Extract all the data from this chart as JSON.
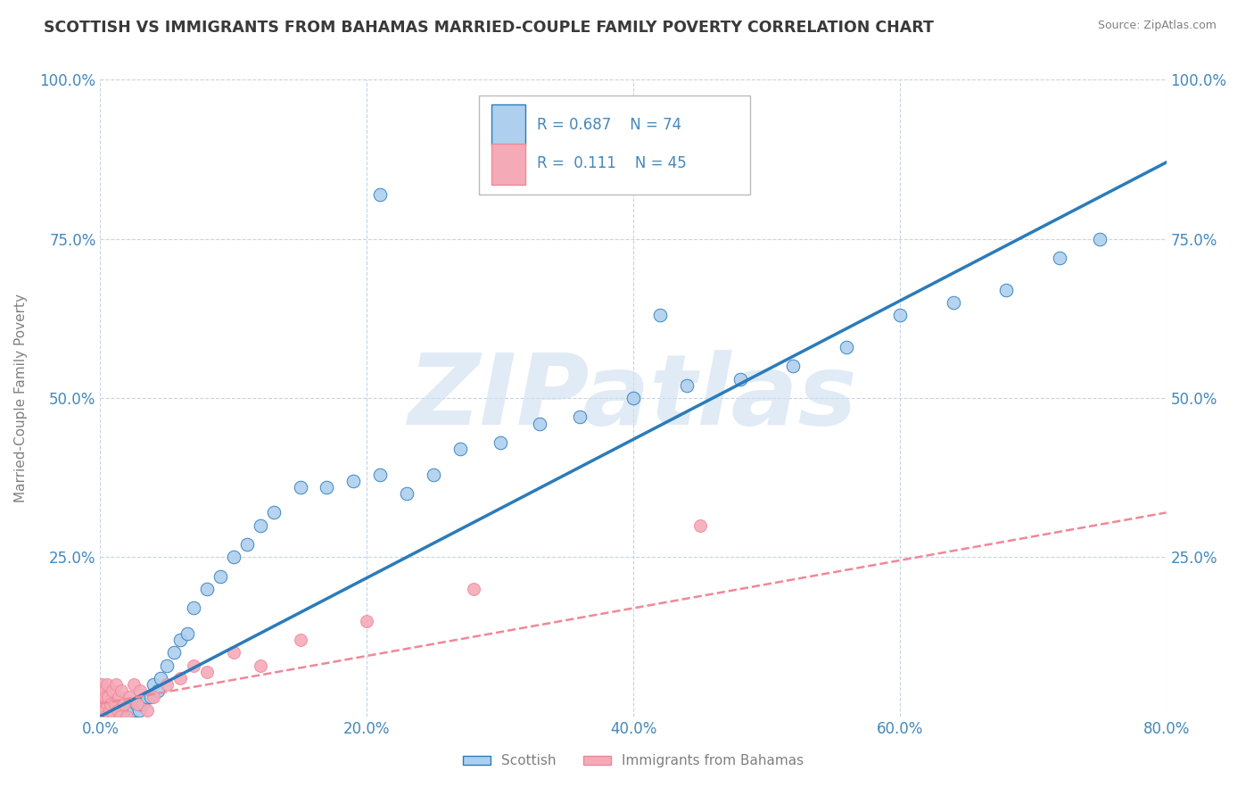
{
  "title": "SCOTTISH VS IMMIGRANTS FROM BAHAMAS MARRIED-COUPLE FAMILY POVERTY CORRELATION CHART",
  "source": "Source: ZipAtlas.com",
  "ylabel": "Married-Couple Family Poverty",
  "xlim": [
    0.0,
    0.8
  ],
  "ylim": [
    0.0,
    1.0
  ],
  "xticks": [
    0.0,
    0.2,
    0.4,
    0.6,
    0.8
  ],
  "xticklabels": [
    "0.0%",
    "20.0%",
    "40.0%",
    "60.0%",
    "80.0%"
  ],
  "yticks": [
    0.0,
    0.25,
    0.5,
    0.75,
    1.0
  ],
  "yticklabels": [
    "",
    "25.0%",
    "50.0%",
    "75.0%",
    "100.0%"
  ],
  "legend_r_scottish": "0.687",
  "legend_n_scottish": "74",
  "legend_r_bahamas": "0.111",
  "legend_n_bahamas": "45",
  "scottish_color": "#aecfee",
  "bahamas_color": "#f5aab8",
  "trend_scottish_color": "#2b7bba",
  "trend_bahamas_color": "#f08898",
  "watermark": "ZIPatlas",
  "watermark_color": "#ccdff0",
  "background_color": "#ffffff",
  "grid_color": "#c0d0e0",
  "title_color": "#3a3a3a",
  "axis_label_color": "#808080",
  "tick_label_color": "#4488bb",
  "scottish_x": [
    0.001,
    0.001,
    0.002,
    0.002,
    0.003,
    0.003,
    0.004,
    0.004,
    0.005,
    0.005,
    0.006,
    0.006,
    0.007,
    0.007,
    0.008,
    0.009,
    0.01,
    0.01,
    0.011,
    0.012,
    0.013,
    0.014,
    0.015,
    0.016,
    0.017,
    0.018,
    0.019,
    0.02,
    0.021,
    0.022,
    0.023,
    0.025,
    0.027,
    0.029,
    0.03,
    0.032,
    0.035,
    0.038,
    0.04,
    0.043,
    0.045,
    0.05,
    0.055,
    0.06,
    0.065,
    0.07,
    0.08,
    0.09,
    0.1,
    0.11,
    0.12,
    0.13,
    0.15,
    0.17,
    0.19,
    0.21,
    0.23,
    0.25,
    0.27,
    0.3,
    0.33,
    0.36,
    0.4,
    0.44,
    0.48,
    0.52,
    0.56,
    0.6,
    0.64,
    0.68,
    0.72,
    0.75,
    0.21,
    0.42
  ],
  "scottish_y": [
    0.0,
    0.01,
    0.0,
    0.01,
    0.0,
    0.0,
    0.0,
    0.0,
    0.0,
    0.01,
    0.0,
    0.0,
    0.0,
    0.01,
    0.0,
    0.0,
    0.0,
    0.01,
    0.0,
    0.0,
    0.0,
    0.01,
    0.0,
    0.0,
    0.0,
    0.01,
    0.0,
    0.0,
    0.01,
    0.0,
    0.0,
    0.01,
    0.02,
    0.01,
    0.02,
    0.02,
    0.03,
    0.03,
    0.05,
    0.04,
    0.06,
    0.08,
    0.1,
    0.12,
    0.13,
    0.17,
    0.2,
    0.22,
    0.25,
    0.27,
    0.3,
    0.32,
    0.36,
    0.36,
    0.37,
    0.38,
    0.35,
    0.38,
    0.42,
    0.43,
    0.46,
    0.47,
    0.5,
    0.52,
    0.53,
    0.55,
    0.58,
    0.63,
    0.65,
    0.67,
    0.72,
    0.75,
    0.82,
    0.63
  ],
  "bahamas_x": [
    0.0,
    0.0,
    0.0,
    0.0,
    0.001,
    0.001,
    0.001,
    0.002,
    0.002,
    0.003,
    0.003,
    0.004,
    0.004,
    0.005,
    0.005,
    0.006,
    0.006,
    0.007,
    0.008,
    0.009,
    0.01,
    0.011,
    0.012,
    0.013,
    0.014,
    0.015,
    0.016,
    0.018,
    0.02,
    0.022,
    0.025,
    0.028,
    0.03,
    0.035,
    0.04,
    0.05,
    0.06,
    0.07,
    0.08,
    0.1,
    0.12,
    0.15,
    0.2,
    0.28,
    0.45
  ],
  "bahamas_y": [
    0.0,
    0.01,
    0.02,
    0.04,
    0.0,
    0.02,
    0.05,
    0.0,
    0.03,
    0.01,
    0.04,
    0.0,
    0.03,
    0.02,
    0.05,
    0.0,
    0.03,
    0.01,
    0.02,
    0.04,
    0.0,
    0.02,
    0.05,
    0.01,
    0.03,
    0.0,
    0.04,
    0.02,
    0.0,
    0.03,
    0.05,
    0.02,
    0.04,
    0.01,
    0.03,
    0.05,
    0.06,
    0.08,
    0.07,
    0.1,
    0.08,
    0.12,
    0.15,
    0.2,
    0.3
  ],
  "trend_scottish_x0": 0.0,
  "trend_scottish_y0": 0.0,
  "trend_scottish_x1": 0.8,
  "trend_scottish_y1": 0.87,
  "trend_bahamas_x0": 0.0,
  "trend_bahamas_y0": 0.02,
  "trend_bahamas_x1": 0.8,
  "trend_bahamas_y1": 0.32
}
